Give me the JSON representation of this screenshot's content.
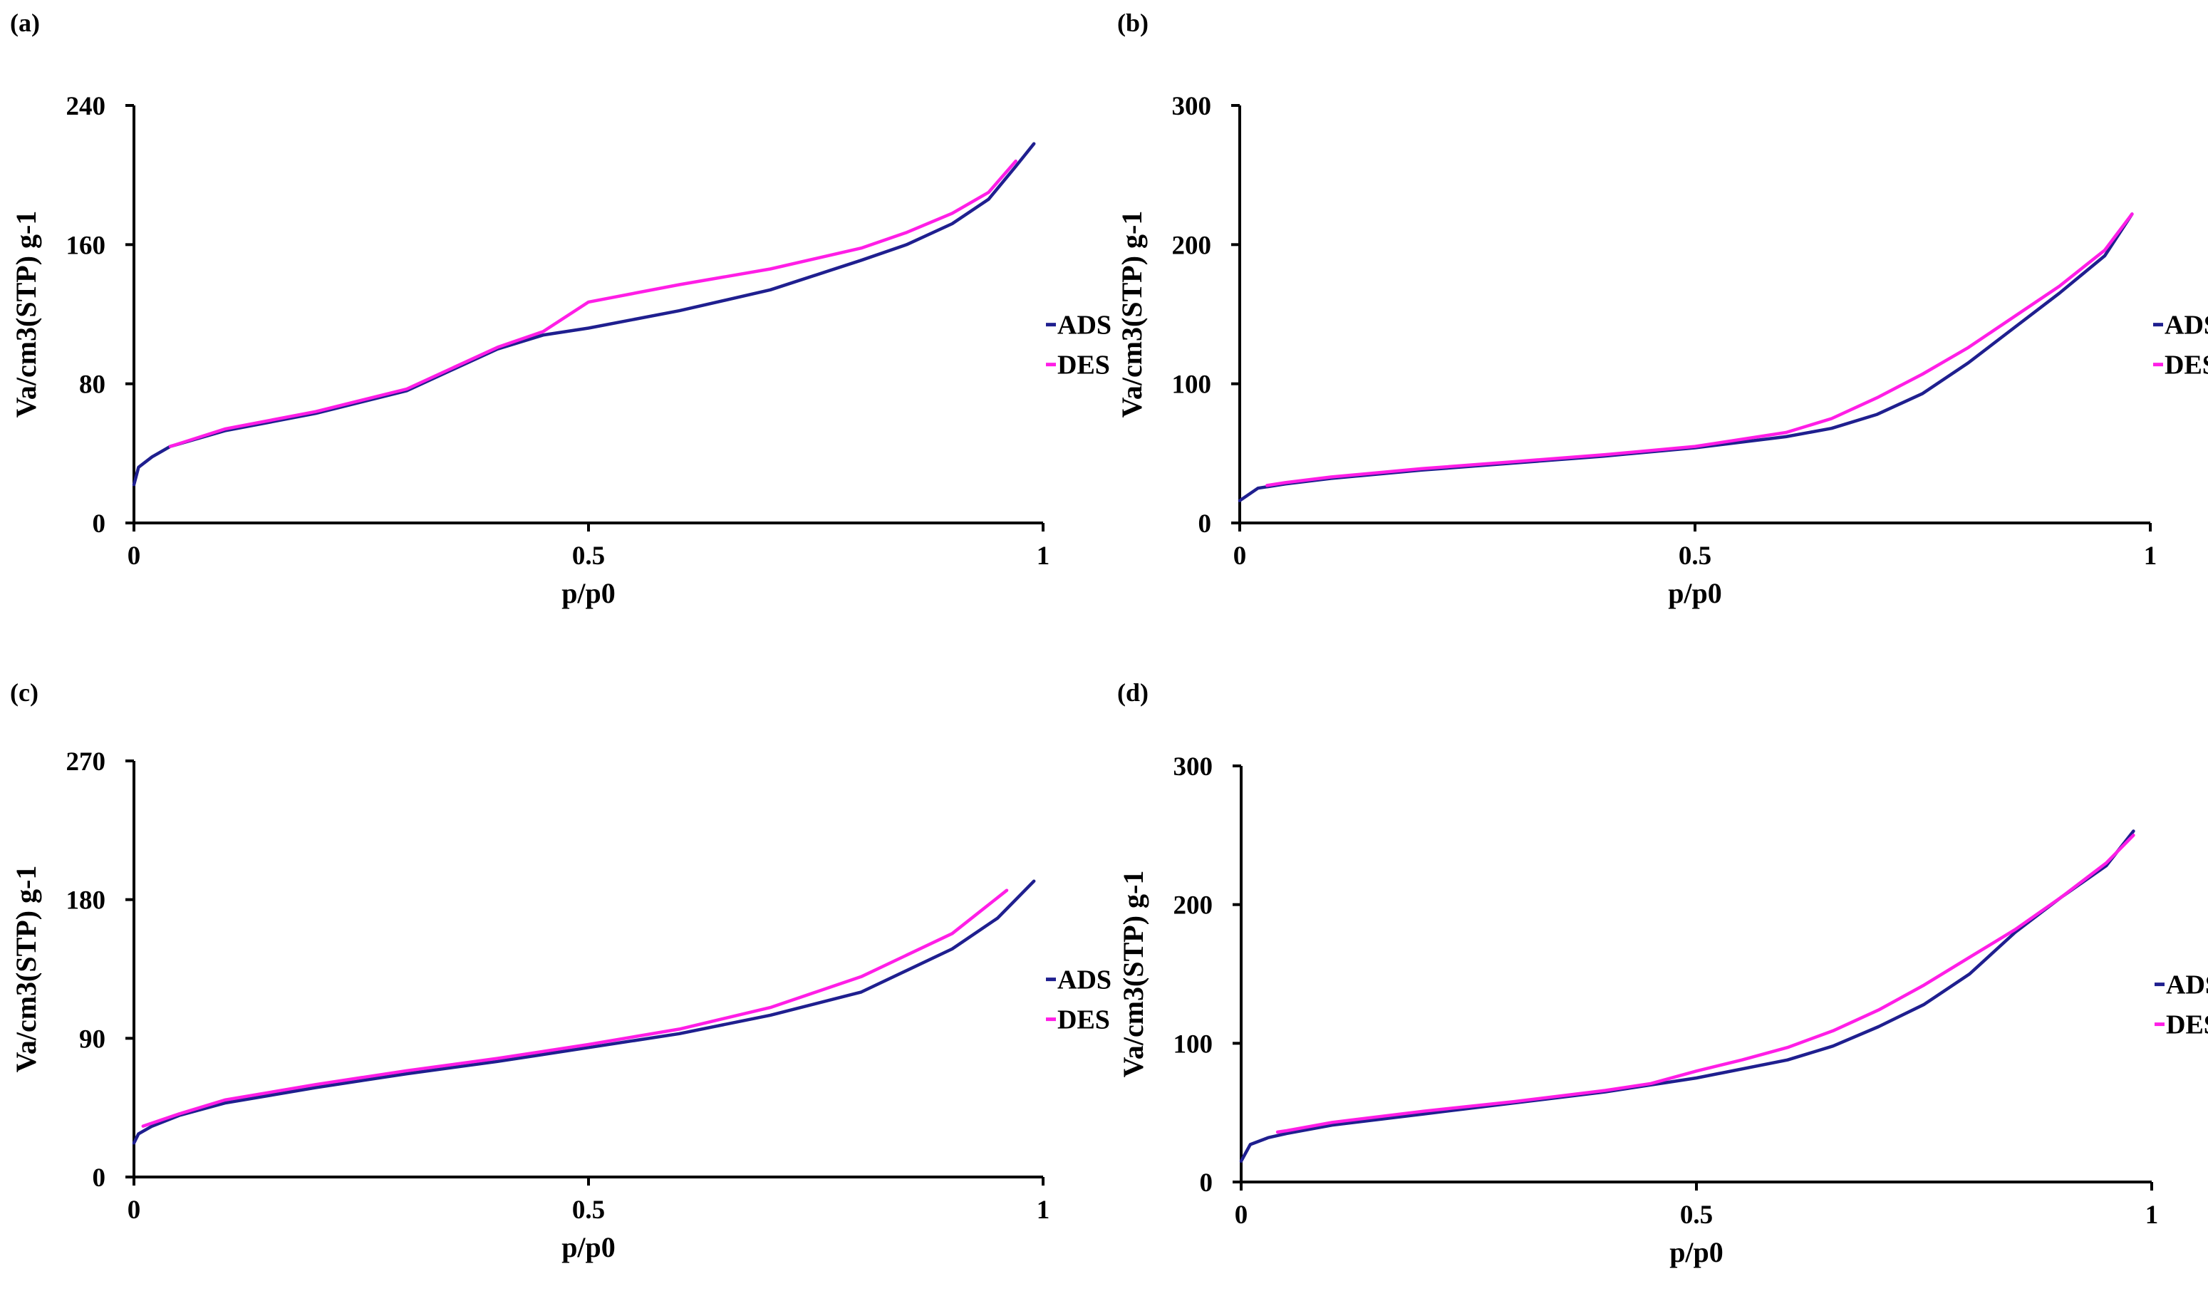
{
  "chart_data": [
    {
      "panel": "(a)",
      "type": "line",
      "xlabel": "p/p0",
      "ylabel": "Va/cm3(STP) g-1",
      "xlim": [
        0,
        1
      ],
      "ylim": [
        0,
        240
      ],
      "xticks": [
        "0",
        "0.5",
        "1"
      ],
      "xtick_values": [
        0,
        0.5,
        1
      ],
      "yticks": [
        "0",
        "80",
        "160",
        "240"
      ],
      "ytick_values": [
        0,
        80,
        160,
        240
      ],
      "legend_position": "right",
      "series": [
        {
          "name": "ADS",
          "color": "#1f1f8f",
          "x": [
            0,
            0.005,
            0.02,
            0.04,
            0.1,
            0.2,
            0.3,
            0.4,
            0.45,
            0.5,
            0.6,
            0.7,
            0.8,
            0.85,
            0.9,
            0.94,
            0.97,
            0.99
          ],
          "y": [
            22,
            32,
            38,
            44,
            53,
            63,
            76,
            100,
            108,
            112,
            122,
            134,
            151,
            160,
            172,
            186,
            205,
            218
          ]
        },
        {
          "name": "DES",
          "color": "#ff1ee6",
          "x": [
            0.04,
            0.1,
            0.2,
            0.3,
            0.4,
            0.45,
            0.5,
            0.6,
            0.7,
            0.8,
            0.85,
            0.9,
            0.94,
            0.97
          ],
          "y": [
            44,
            54,
            64,
            77,
            101,
            110,
            127,
            137,
            146,
            158,
            167,
            178,
            190,
            208
          ]
        }
      ]
    },
    {
      "panel": "(b)",
      "type": "line",
      "xlabel": "p/p0",
      "ylabel": "Va/cm3(STP) g-1",
      "xlim": [
        0,
        1
      ],
      "ylim": [
        0,
        300
      ],
      "xticks": [
        "0",
        "0.5",
        "1"
      ],
      "xtick_values": [
        0,
        0.5,
        1
      ],
      "yticks": [
        "0",
        "100",
        "200",
        "300"
      ],
      "ytick_values": [
        0,
        100,
        200,
        300
      ],
      "legend_position": "right",
      "series": [
        {
          "name": "ADS",
          "color": "#1f1f8f",
          "x": [
            0,
            0.02,
            0.05,
            0.1,
            0.2,
            0.3,
            0.4,
            0.5,
            0.6,
            0.65,
            0.7,
            0.75,
            0.8,
            0.85,
            0.9,
            0.95,
            0.98
          ],
          "y": [
            16,
            25,
            28,
            32,
            38,
            43,
            48,
            54,
            62,
            68,
            78,
            93,
            115,
            140,
            165,
            192,
            222
          ]
        },
        {
          "name": "DES",
          "color": "#ff1ee6",
          "x": [
            0.03,
            0.05,
            0.1,
            0.2,
            0.3,
            0.4,
            0.5,
            0.6,
            0.65,
            0.7,
            0.75,
            0.8,
            0.85,
            0.9,
            0.95,
            0.98
          ],
          "y": [
            27,
            29,
            33,
            39,
            44,
            49,
            55,
            65,
            75,
            90,
            107,
            126,
            148,
            170,
            196,
            222
          ]
        }
      ]
    },
    {
      "panel": "(c)",
      "type": "line",
      "xlabel": "p/p0",
      "ylabel": "Va/cm3(STP) g-1",
      "xlim": [
        0,
        1
      ],
      "ylim": [
        0,
        270
      ],
      "xticks": [
        "0",
        "0.5",
        "1"
      ],
      "xtick_values": [
        0,
        0.5,
        1
      ],
      "yticks": [
        "0",
        "90",
        "180",
        "270"
      ],
      "ytick_values": [
        0,
        90,
        180,
        270
      ],
      "legend_position": "right",
      "series": [
        {
          "name": "ADS",
          "color": "#1f1f8f",
          "x": [
            0,
            0.005,
            0.02,
            0.05,
            0.1,
            0.2,
            0.3,
            0.4,
            0.5,
            0.6,
            0.7,
            0.8,
            0.9,
            0.95,
            0.99
          ],
          "y": [
            22,
            28,
            33,
            40,
            48,
            58,
            67,
            75,
            84,
            93,
            105,
            120,
            148,
            168,
            192
          ]
        },
        {
          "name": "DES",
          "color": "#ff1ee6",
          "x": [
            0.01,
            0.05,
            0.1,
            0.2,
            0.3,
            0.4,
            0.5,
            0.6,
            0.7,
            0.8,
            0.9,
            0.96
          ],
          "y": [
            33,
            41,
            50,
            60,
            69,
            77,
            86,
            96,
            110,
            130,
            158,
            186
          ]
        }
      ]
    },
    {
      "panel": "(d)",
      "type": "line",
      "xlabel": "p/p0",
      "ylabel": "Va/cm3(STP) g-1",
      "xlim": [
        0,
        1
      ],
      "ylim": [
        0,
        300
      ],
      "xticks": [
        "0",
        "0.5",
        "1"
      ],
      "xtick_values": [
        0,
        0.5,
        1
      ],
      "yticks": [
        "0",
        "100",
        "200",
        "300"
      ],
      "ytick_values": [
        0,
        100,
        200,
        300
      ],
      "legend_position": "right",
      "series": [
        {
          "name": "ADS",
          "color": "#1f1f8f",
          "x": [
            0,
            0.01,
            0.03,
            0.05,
            0.1,
            0.2,
            0.3,
            0.4,
            0.5,
            0.6,
            0.65,
            0.7,
            0.75,
            0.8,
            0.85,
            0.9,
            0.95,
            0.98
          ],
          "y": [
            15,
            27,
            32,
            35,
            41,
            49,
            57,
            65,
            75,
            88,
            98,
            112,
            128,
            150,
            180,
            205,
            228,
            253
          ]
        },
        {
          "name": "DES",
          "color": "#ff1ee6",
          "x": [
            0.04,
            0.05,
            0.1,
            0.2,
            0.3,
            0.4,
            0.45,
            0.5,
            0.55,
            0.6,
            0.65,
            0.7,
            0.75,
            0.8,
            0.85,
            0.9,
            0.95,
            0.98
          ],
          "y": [
            36,
            37,
            43,
            51,
            58,
            66,
            71,
            80,
            88,
            97,
            109,
            124,
            142,
            162,
            182,
            205,
            230,
            250
          ]
        }
      ]
    }
  ]
}
